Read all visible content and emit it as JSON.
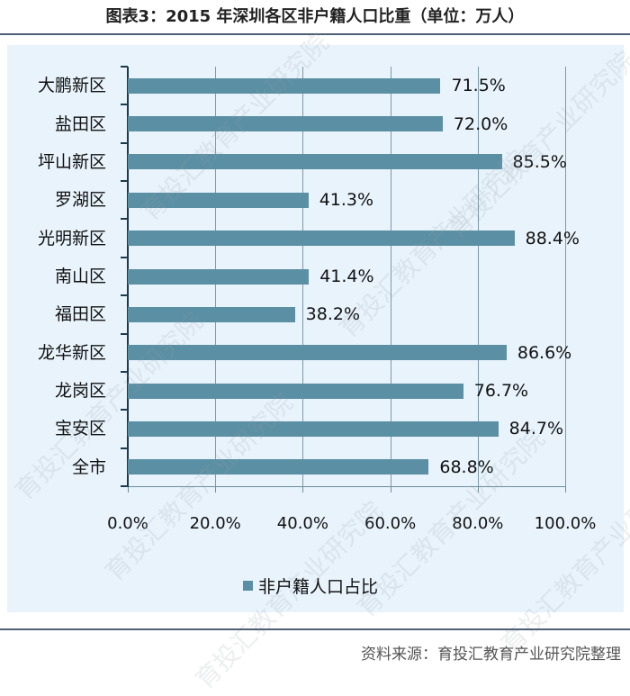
{
  "header": {
    "title": "图表3：2015 年深圳各区非户籍人口比重（单位：万人）"
  },
  "footer": {
    "source": "资料来源：育投汇教育产业研究院整理"
  },
  "watermark": "育投汇教育产业研究院",
  "colors": {
    "bar": "#5b8fa3",
    "panel_bg": "#e8f3fb",
    "rule": "#4f5f76"
  },
  "chart_data": {
    "type": "bar",
    "orientation": "horizontal",
    "title": "图表3：2015 年深圳各区非户籍人口比重（单位：万人）",
    "categories": [
      "大鹏新区",
      "盐田区",
      "坪山新区",
      "罗湖区",
      "光明新区",
      "南山区",
      "福田区",
      "龙华新区",
      "龙岗区",
      "宝安区",
      "全市"
    ],
    "values": [
      71.5,
      72.0,
      85.5,
      41.3,
      88.4,
      41.4,
      38.2,
      86.6,
      76.7,
      84.7,
      68.8
    ],
    "value_labels": [
      "71.5%",
      "72.0%",
      "85.5%",
      "41.3%",
      "88.4%",
      "41.4%",
      "38.2%",
      "86.6%",
      "76.7%",
      "84.7%",
      "68.8%"
    ],
    "series": [
      {
        "name": "非户籍人口占比",
        "values": [
          71.5,
          72.0,
          85.5,
          41.3,
          88.4,
          41.4,
          38.2,
          86.6,
          76.7,
          84.7,
          68.8
        ]
      }
    ],
    "xlabel": "",
    "ylabel": "",
    "xlim": [
      0,
      100
    ],
    "x_ticks": [
      "0.0%",
      "20.0%",
      "40.0%",
      "60.0%",
      "80.0%",
      "100.0%"
    ],
    "grid": true,
    "legend": {
      "position": "bottom",
      "entries": [
        "非户籍人口占比"
      ]
    }
  }
}
